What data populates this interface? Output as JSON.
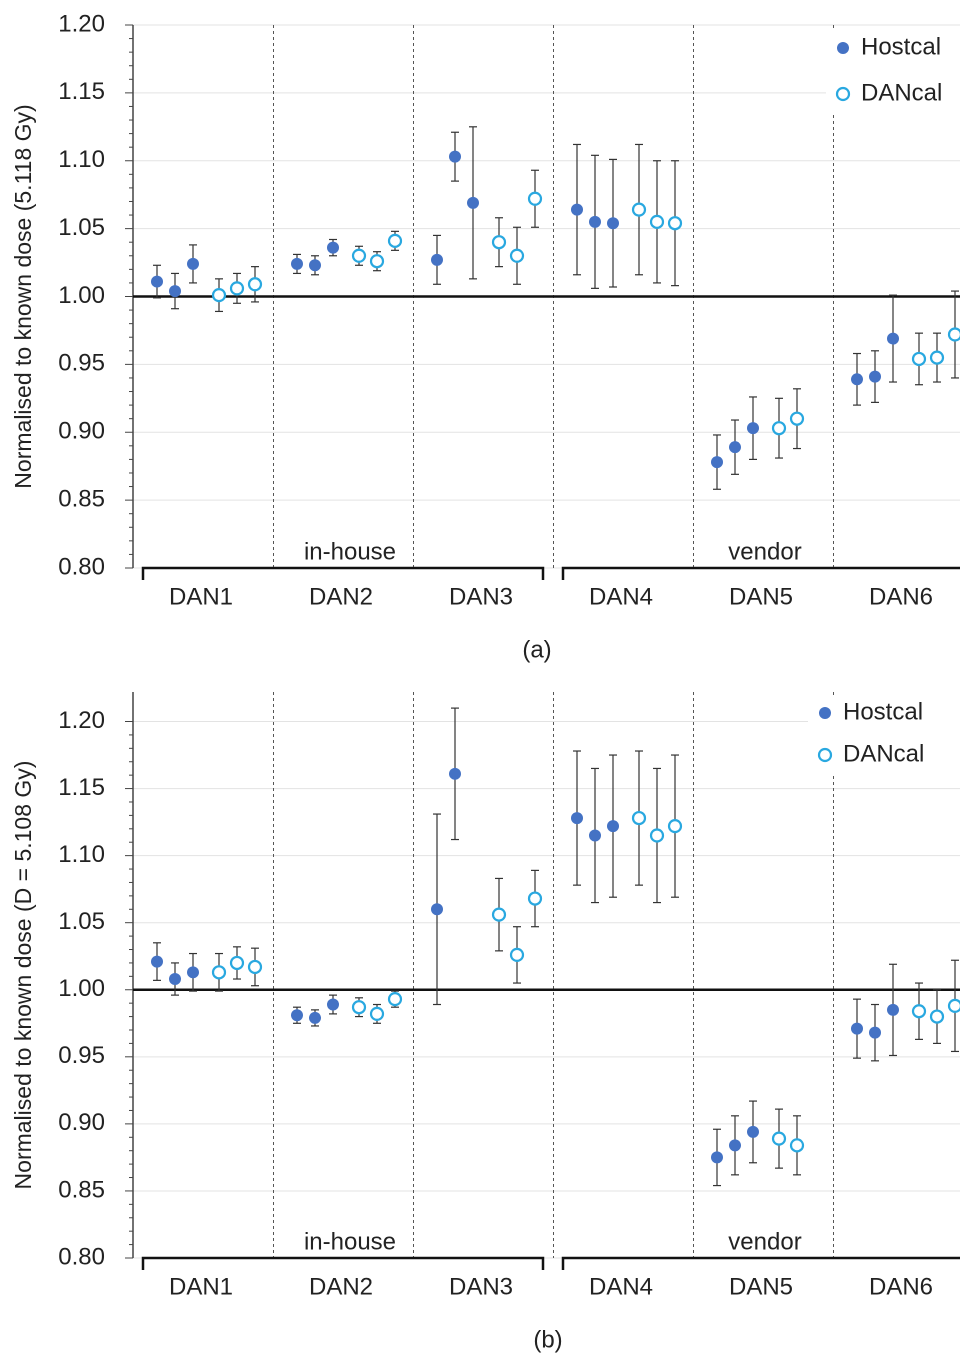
{
  "chart_data": [
    {
      "type": "scatter",
      "caption": "(a)",
      "y_label": "Normalised to known dose  (5.118 Gy)",
      "categories": [
        "DAN1",
        "DAN2",
        "DAN3",
        "DAN4",
        "DAN5",
        "DAN6"
      ],
      "group_labels": [
        "in-house",
        "vendor"
      ],
      "series": [
        {
          "name": "Hostcal",
          "color": "#4472c4",
          "filled": true,
          "values": [
            1.011,
            1.004,
            1.024,
            1.024,
            1.023,
            1.036,
            1.027,
            1.103,
            1.069,
            1.064,
            1.055,
            1.054,
            0.878,
            0.889,
            0.903,
            0.939,
            0.941,
            0.969
          ],
          "errors": [
            0.012,
            0.013,
            0.014,
            0.007,
            0.007,
            0.006,
            0.018,
            0.018,
            0.056,
            0.048,
            0.049,
            0.047,
            0.02,
            0.02,
            0.023,
            0.019,
            0.019,
            0.032
          ]
        },
        {
          "name": "DANcal",
          "color": "#29a8e0",
          "filled": false,
          "values": [
            1.001,
            1.006,
            1.009,
            1.03,
            1.026,
            1.041,
            1.04,
            1.03,
            1.072,
            1.064,
            1.055,
            1.054,
            0.903,
            0.91,
            null,
            0.954,
            0.955,
            0.972
          ],
          "errors": [
            0.012,
            0.011,
            0.013,
            0.007,
            0.007,
            0.007,
            0.018,
            0.021,
            0.021,
            0.048,
            0.045,
            0.046,
            0.022,
            0.022,
            null,
            0.019,
            0.018,
            0.032
          ]
        }
      ],
      "ylim": [
        0.8,
        1.2
      ],
      "yticks": [
        {
          "value": 0.8,
          "label": "0.80"
        },
        {
          "value": 0.85,
          "label": "0.85"
        },
        {
          "value": 0.9,
          "label": "0.90"
        },
        {
          "value": 0.95,
          "label": "0.95"
        },
        {
          "value": 1.0,
          "label": "1.00"
        },
        {
          "value": 1.05,
          "label": "1.05"
        },
        {
          "value": 1.1,
          "label": "1.10"
        },
        {
          "value": 1.15,
          "label": "1.15"
        },
        {
          "value": 1.2,
          "label": "1.20"
        }
      ],
      "reference_line": 1,
      "grid": true,
      "legend": "upper right"
    },
    {
      "type": "scatter",
      "caption": "(b)",
      "y_label": "Normalised to known dose (D = 5.108 Gy)",
      "categories": [
        "DAN1",
        "DAN2",
        "DAN3",
        "DAN4",
        "DAN5",
        "DAN6"
      ],
      "group_labels": [
        "in-house",
        "vendor"
      ],
      "series": [
        {
          "name": "Hostcal",
          "color": "#4472c4",
          "filled": true,
          "values": [
            1.021,
            1.008,
            1.013,
            0.981,
            0.979,
            0.989,
            1.06,
            1.161,
            null,
            1.128,
            1.115,
            1.122,
            0.875,
            0.884,
            0.894,
            0.971,
            0.968,
            0.985
          ],
          "errors": [
            0.014,
            0.012,
            0.014,
            0.006,
            0.006,
            0.007,
            0.071,
            0.049,
            null,
            0.05,
            0.05,
            0.053,
            0.021,
            0.022,
            0.023,
            0.022,
            0.021,
            0.034
          ]
        },
        {
          "name": "DANcal",
          "color": "#29a8e0",
          "filled": false,
          "values": [
            1.013,
            1.02,
            1.017,
            0.987,
            0.982,
            0.993,
            1.056,
            1.026,
            1.068,
            1.128,
            1.115,
            1.122,
            0.889,
            0.884,
            null,
            0.984,
            0.98,
            0.988
          ],
          "errors": [
            0.014,
            0.012,
            0.014,
            0.007,
            0.007,
            0.006,
            0.027,
            0.021,
            0.021,
            0.05,
            0.05,
            0.053,
            0.022,
            0.022,
            null,
            0.021,
            0.02,
            0.034
          ]
        }
      ],
      "ylim": [
        0.8,
        1.222
      ],
      "yticks": [
        {
          "value": 0.8,
          "label": "0.80"
        },
        {
          "value": 0.85,
          "label": "0.85"
        },
        {
          "value": 0.9,
          "label": "0.90"
        },
        {
          "value": 0.95,
          "label": "0.95"
        },
        {
          "value": 1.0,
          "label": "1.00"
        },
        {
          "value": 1.05,
          "label": "1.05"
        },
        {
          "value": 1.1,
          "label": "1.10"
        },
        {
          "value": 1.15,
          "label": "1.15"
        },
        {
          "value": 1.2,
          "label": "1.20"
        }
      ],
      "reference_line": 1,
      "grid": true,
      "legend": "upper right"
    }
  ]
}
